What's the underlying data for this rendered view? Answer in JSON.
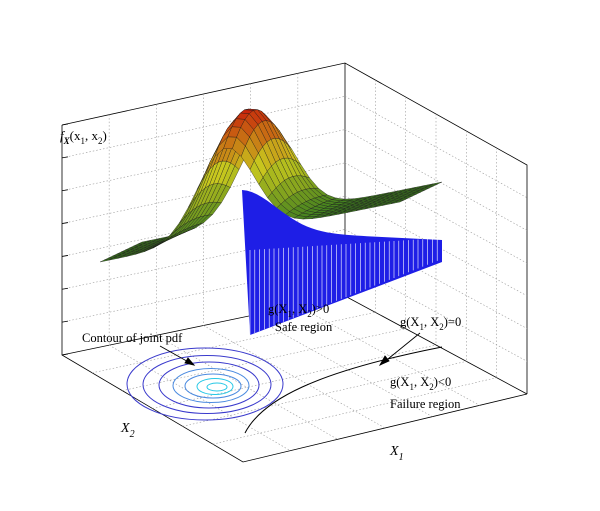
{
  "figure": {
    "z_axis_label": {
      "f": "f",
      "X": "X",
      "open": "(x",
      "s1": "1",
      "comma": ", x",
      "s2": "2",
      "close": ")"
    },
    "x1_axis_label": {
      "name": "X",
      "sub": "1"
    },
    "x2_axis_label": {
      "name": "X",
      "sub": "2"
    }
  },
  "annotations": {
    "contour": "Contour of joint pdf",
    "safe": {
      "pre": "g(X",
      "s1": "1",
      "mid": ", X",
      "s2": "2",
      "post": ")>0",
      "region": "Safe region"
    },
    "limit": {
      "pre": "g(X",
      "s1": "1",
      "mid": ", X",
      "s2": "2",
      "post": ")=0"
    },
    "failure": {
      "pre": "g(X",
      "s1": "1",
      "mid": ", X",
      "s2": "2",
      "post": ")<0",
      "region": "Failure region"
    }
  },
  "colors": {
    "surface_low": "#3f7f1f",
    "surface_mid": "#c8c81e",
    "surface_high": "#c81e0a",
    "cut_face": "#1e1ee6",
    "contour": "#3a3acc",
    "contour_inner": "#28c8e6",
    "grid": "#9a9a9a"
  }
}
